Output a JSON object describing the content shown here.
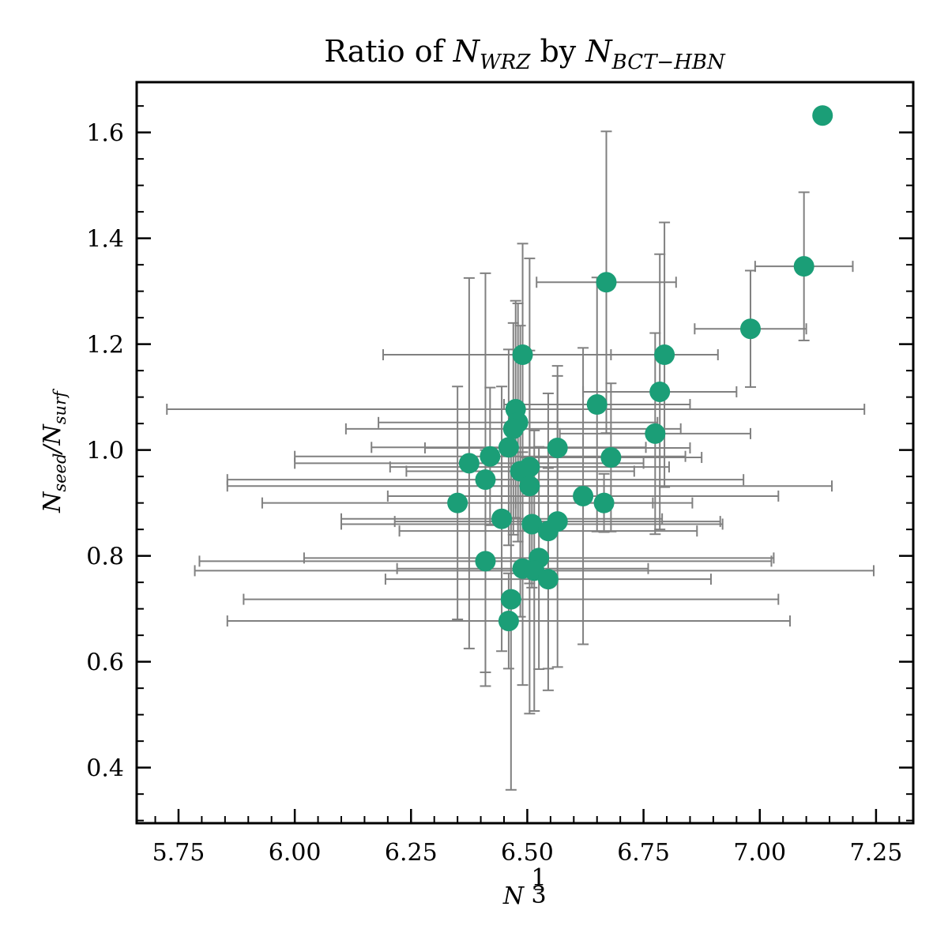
{
  "chart_data": {
    "type": "scatter",
    "title_prefix": "Ratio of ",
    "title_n1": "N",
    "title_n1_sub": "WRZ",
    "title_mid": " by ",
    "title_n2": "N",
    "title_n2_sub": "BCT−HBN",
    "xlabel_base": "N",
    "xlabel_sup_num": "1",
    "xlabel_sup_den": "3",
    "ylabel_n1": "N",
    "ylabel_n1_sub": "seed",
    "ylabel_slash": "/",
    "ylabel_n2": "N",
    "ylabel_n2_sub": "surf",
    "xlim": [
      5.66,
      7.33
    ],
    "ylim": [
      0.295,
      1.695
    ],
    "x_ticks": [
      5.75,
      6.0,
      6.25,
      6.5,
      6.75,
      7.0,
      7.25
    ],
    "x_tick_labels": [
      "5.75",
      "6.00",
      "6.25",
      "6.50",
      "6.75",
      "7.00",
      "7.25"
    ],
    "y_ticks": [
      0.4,
      0.6,
      0.8,
      1.0,
      1.2,
      1.4,
      1.6
    ],
    "y_tick_labels": [
      "0.4",
      "0.6",
      "0.8",
      "1.0",
      "1.2",
      "1.4",
      "1.6"
    ],
    "grid": false,
    "marker_color": "#1b9e77",
    "error_color": "#808080",
    "points": [
      {
        "x": 7.135,
        "y": 1.632
      },
      {
        "x": 7.095,
        "y": 1.347,
        "xerr": 0.105,
        "yerr": 0.14
      },
      {
        "x": 6.98,
        "y": 1.229,
        "xerr": 0.12,
        "yerr": 0.11
      },
      {
        "x": 6.67,
        "y": 1.317,
        "xerr": 0.15,
        "yerr": 0.285
      },
      {
        "x": 6.49,
        "y": 1.18,
        "xerr": 0.3,
        "yerr": 0.21
      },
      {
        "x": 6.795,
        "y": 1.18,
        "xerr": 0.115,
        "yerr": 0.25
      },
      {
        "x": 6.785,
        "y": 1.11,
        "xerr": 0.165,
        "yerr": 0.26
      },
      {
        "x": 6.65,
        "y": 1.086,
        "xerr": 0.2,
        "yerr": 0.24
      },
      {
        "x": 6.475,
        "y": 1.077,
        "xerr": 0.75,
        "yerr": 0.205
      },
      {
        "x": 6.48,
        "y": 1.052,
        "xerr": 0.3,
        "yerr": 0.225
      },
      {
        "x": 6.47,
        "y": 1.04,
        "xerr": 0.36,
        "yerr": 0.2
      },
      {
        "x": 6.775,
        "y": 1.031,
        "xerr": 0.205,
        "yerr": 0.19
      },
      {
        "x": 6.46,
        "y": 1.005,
        "xerr": 0.295,
        "yerr": 0.185
      },
      {
        "x": 6.565,
        "y": 1.004,
        "xerr": 0.285,
        "yerr": 0.155
      },
      {
        "x": 6.42,
        "y": 0.988,
        "xerr": 0.42,
        "yerr": 0.13
      },
      {
        "x": 6.68,
        "y": 0.986,
        "xerr": 0.195,
        "yerr": 0.14
      },
      {
        "x": 6.375,
        "y": 0.975,
        "xerr": 0.375,
        "yerr": 0.35
      },
      {
        "x": 6.505,
        "y": 0.968,
        "xerr": 0.3,
        "yerr": 0.22
      },
      {
        "x": 6.485,
        "y": 0.96,
        "xerr": 0.245,
        "yerr": 0.275
      },
      {
        "x": 6.41,
        "y": 0.944,
        "xerr": 0.555,
        "yerr": 0.39
      },
      {
        "x": 6.505,
        "y": 0.932,
        "xerr": 0.65,
        "yerr": 0.43
      },
      {
        "x": 6.62,
        "y": 0.913,
        "xerr": 0.42,
        "yerr": 0.28
      },
      {
        "x": 6.35,
        "y": 0.9,
        "xerr": 0.42,
        "yerr": 0.22
      },
      {
        "x": 6.665,
        "y": 0.9,
        "xerr": 0.19,
        "yerr": 0.055
      },
      {
        "x": 6.445,
        "y": 0.87,
        "xerr": 0.345,
        "yerr": 0.25
      },
      {
        "x": 6.51,
        "y": 0.86,
        "xerr": 0.41,
        "yerr": 0.12
      },
      {
        "x": 6.545,
        "y": 0.847,
        "xerr": 0.32,
        "yerr": 0.26
      },
      {
        "x": 6.565,
        "y": 0.865,
        "xerr": 0.35,
        "yerr": 0.275
      },
      {
        "x": 6.41,
        "y": 0.79,
        "xerr": 0.615,
        "yerr": 0.21
      },
      {
        "x": 6.525,
        "y": 0.796,
        "xerr": 0.505,
        "yerr": 0.21
      },
      {
        "x": 6.49,
        "y": 0.776,
        "xerr": 0.27,
        "yerr": 0.22
      },
      {
        "x": 6.515,
        "y": 0.772,
        "xerr": 0.73,
        "yerr": 0.265
      },
      {
        "x": 6.545,
        "y": 0.756,
        "xerr": 0.35,
        "yerr": 0.21
      },
      {
        "x": 6.465,
        "y": 0.718,
        "xerr": 0.575,
        "yerr": 0.36
      },
      {
        "x": 6.46,
        "y": 0.677,
        "xerr": 0.605,
        "yerr": 0.09
      }
    ]
  }
}
